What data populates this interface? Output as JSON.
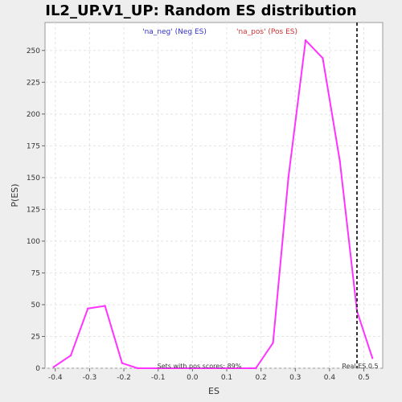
{
  "chart_data": {
    "type": "line",
    "title": "IL2_UP.V1_UP: Random ES distribution",
    "xlabel": "ES",
    "ylabel": "P(ES)",
    "xlim": [
      -0.43,
      0.555
    ],
    "ylim": [
      0,
      272
    ],
    "x_ticks": [
      -0.4,
      -0.3,
      -0.2,
      -0.1,
      0.0,
      0.1,
      0.2,
      0.3,
      0.4,
      0.5
    ],
    "x_tick_labels": [
      "-0.4",
      "-0.3",
      "-0.2",
      "-0.1",
      "0.0",
      "0.1",
      "0.2",
      "0.3",
      "0.4",
      "0.5"
    ],
    "y_ticks": [
      0,
      25,
      50,
      75,
      100,
      125,
      150,
      175,
      200,
      225,
      250
    ],
    "y_tick_labels": [
      "0",
      "25",
      "50",
      "75",
      "100",
      "125",
      "150",
      "175",
      "200",
      "225",
      "250"
    ],
    "grid": true,
    "legend": {
      "placement": "top",
      "entries": [
        {
          "label": "'na_neg' (Neg ES)",
          "color": "#3333cc"
        },
        {
          "label": "'na_pos' (Pos ES)",
          "color": "#cc3333"
        }
      ]
    },
    "series": [
      {
        "color": "#ff33ff",
        "x": [
          -0.405,
          -0.355,
          -0.305,
          -0.255,
          -0.205,
          -0.16,
          -0.1,
          0.0,
          0.1,
          0.185,
          0.235,
          0.28,
          0.33,
          0.38,
          0.43,
          0.48,
          0.525
        ],
        "y": [
          1,
          10,
          47,
          49,
          4,
          0,
          0,
          0,
          0,
          0,
          20,
          150,
          258,
          244,
          163,
          45,
          8
        ]
      }
    ],
    "reference_line": {
      "x": 0.48,
      "label": "Real ES 0.5",
      "color": "#333333",
      "style": "dashed"
    },
    "annotation": "Sets with pos scores: 89%"
  }
}
